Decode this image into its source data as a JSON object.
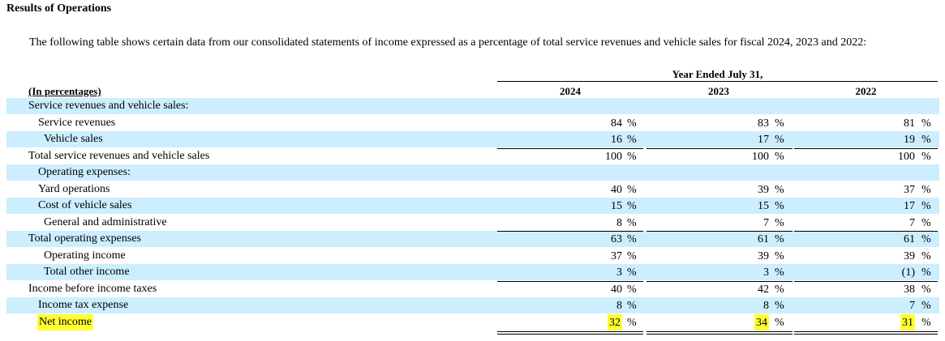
{
  "heading": "Results of Operations",
  "intro": "The following table shows certain data from our consolidated statements of income expressed as a percentage of total service revenues and vehicle sales for fiscal 2024, 2023 and 2022:",
  "table": {
    "period_label": "Year Ended July 31,",
    "units_label": "(In percentages)",
    "years": [
      "2024",
      "2023",
      "2022"
    ],
    "pct_symbol": "%",
    "rows": [
      {
        "label": "Service revenues and vehicle sales:",
        "values": [
          "",
          "",
          ""
        ],
        "pct": [
          "",
          "",
          ""
        ]
      },
      {
        "label": "Service revenues",
        "values": [
          "84",
          "83",
          "81"
        ],
        "pct": [
          "%",
          "%",
          "%"
        ]
      },
      {
        "label": "Vehicle sales",
        "values": [
          "16",
          "17",
          "19"
        ],
        "pct": [
          "%",
          "%",
          "%"
        ]
      },
      {
        "label": "Total service revenues and vehicle sales",
        "values": [
          "100",
          "100",
          "100"
        ],
        "pct": [
          "%",
          "%",
          "%"
        ]
      },
      {
        "label": "Operating expenses:",
        "values": [
          "",
          "",
          ""
        ],
        "pct": [
          "",
          "",
          ""
        ]
      },
      {
        "label": "Yard operations",
        "values": [
          "40",
          "39",
          "37"
        ],
        "pct": [
          "%",
          "%",
          "%"
        ]
      },
      {
        "label": "Cost of vehicle sales",
        "values": [
          "15",
          "15",
          "17"
        ],
        "pct": [
          "%",
          "%",
          "%"
        ]
      },
      {
        "label": "General and administrative",
        "values": [
          "8",
          "7",
          "7"
        ],
        "pct": [
          "%",
          "%",
          "%"
        ]
      },
      {
        "label": "Total operating expenses",
        "values": [
          "63",
          "61",
          "61"
        ],
        "pct": [
          "%",
          "%",
          "%"
        ]
      },
      {
        "label": "Operating income",
        "values": [
          "37",
          "39",
          "39"
        ],
        "pct": [
          "%",
          "%",
          "%"
        ]
      },
      {
        "label": "Total other income",
        "values": [
          "3",
          "3",
          "(1)"
        ],
        "pct": [
          "%",
          "%",
          "%"
        ]
      },
      {
        "label": "Income before income taxes",
        "values": [
          "40",
          "42",
          "38"
        ],
        "pct": [
          "%",
          "%",
          "%"
        ]
      },
      {
        "label": "Income tax expense",
        "values": [
          "8",
          "8",
          "7"
        ],
        "pct": [
          "%",
          "%",
          "%"
        ]
      },
      {
        "label": "Net income",
        "values": [
          "32",
          "34",
          "31"
        ],
        "pct": [
          "%",
          "%",
          "%"
        ]
      }
    ]
  },
  "colors": {
    "row_shade": "#cceeff",
    "highlight": "#ffff33"
  }
}
